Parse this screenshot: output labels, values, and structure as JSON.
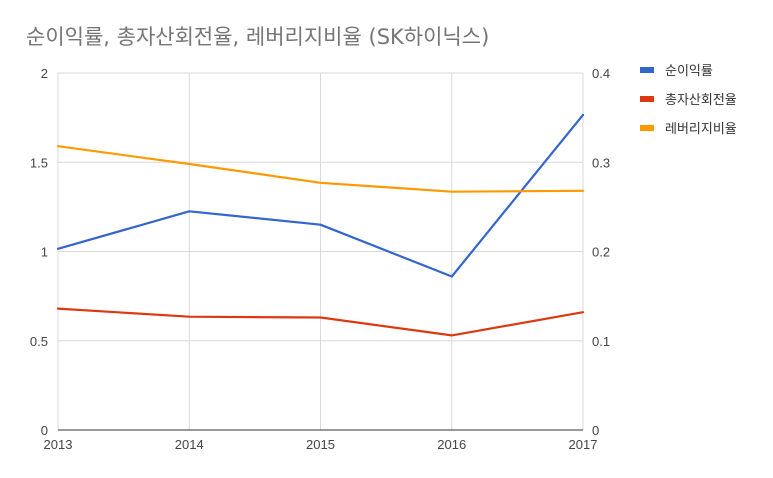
{
  "chart_data": {
    "type": "line",
    "title": "순이익률, 총자산회전율, 레버리지비율 (SK하이닉스)",
    "xlabel": "",
    "ylabel": "",
    "x": [
      "2013",
      "2014",
      "2015",
      "2016",
      "2017"
    ],
    "y_left": {
      "lim": [
        0,
        2
      ],
      "ticks": [
        "0",
        "0.5",
        "1",
        "1.5",
        "2"
      ]
    },
    "y_right": {
      "lim": [
        0,
        0.4
      ],
      "ticks": [
        "0",
        "0.1",
        "0.2",
        "0.3",
        "0.4"
      ]
    },
    "grid": true,
    "legend_position": "right",
    "series": [
      {
        "name": "순이익률",
        "axis": "right",
        "color": "#3366cc",
        "values": [
          0.203,
          0.245,
          0.23,
          0.172,
          0.353
        ]
      },
      {
        "name": "총자산회전율",
        "axis": "left",
        "color": "#dc3912",
        "values": [
          0.68,
          0.635,
          0.63,
          0.53,
          0.66
        ]
      },
      {
        "name": "레버리지비율",
        "axis": "left",
        "color": "#ff9900",
        "values": [
          1.59,
          1.49,
          1.385,
          1.335,
          1.34
        ]
      }
    ]
  }
}
